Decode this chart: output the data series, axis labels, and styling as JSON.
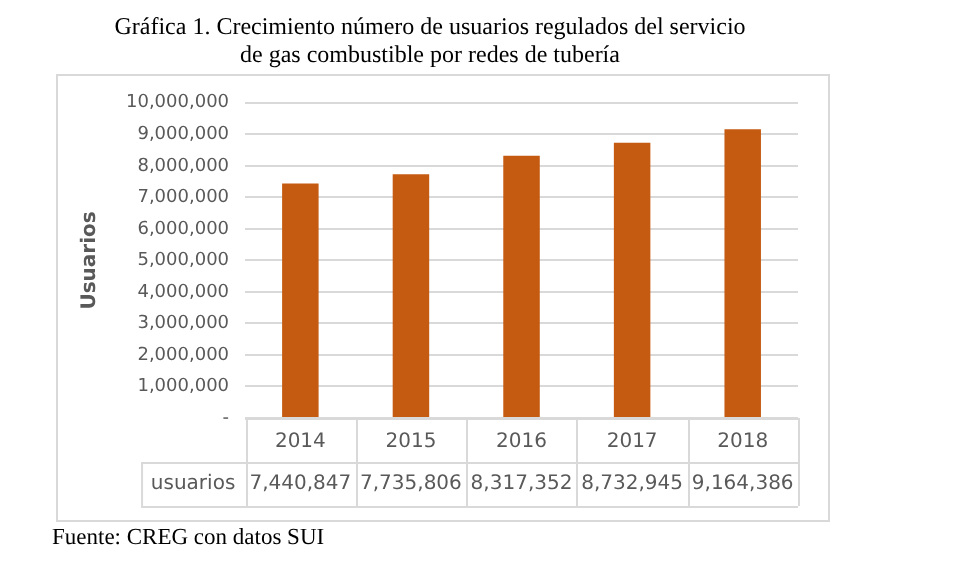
{
  "chart_data": {
    "type": "bar",
    "title": "Gráfica 1. Crecimiento número de usuarios regulados del servicio de gas combustible por redes de tubería",
    "ylabel": "Usuarios",
    "categories": [
      "2014",
      "2015",
      "2016",
      "2017",
      "2018"
    ],
    "series": [
      {
        "name": "usuarios",
        "color": "#c55a11",
        "values": [
          7440847,
          7735806,
          8317352,
          8732945,
          9164386
        ],
        "value_labels": [
          "7,440,847",
          "7,735,806",
          "8,317,352",
          "8,732,945",
          "9,164,386"
        ]
      }
    ],
    "ylim": [
      0,
      10000000
    ],
    "yticks": [
      {
        "value": 0,
        "label": "-"
      },
      {
        "value": 1000000,
        "label": "1,000,000"
      },
      {
        "value": 2000000,
        "label": "2,000,000"
      },
      {
        "value": 3000000,
        "label": "3,000,000"
      },
      {
        "value": 4000000,
        "label": "4,000,000"
      },
      {
        "value": 5000000,
        "label": "5,000,000"
      },
      {
        "value": 6000000,
        "label": "6,000,000"
      },
      {
        "value": 7000000,
        "label": "7,000,000"
      },
      {
        "value": 8000000,
        "label": "8,000,000"
      },
      {
        "value": 9000000,
        "label": "9,000,000"
      },
      {
        "value": 10000000,
        "label": "10,000,000"
      }
    ],
    "grid": "y",
    "legend": false,
    "annotations": [
      "Fuente: CREG con datos SUI"
    ]
  }
}
